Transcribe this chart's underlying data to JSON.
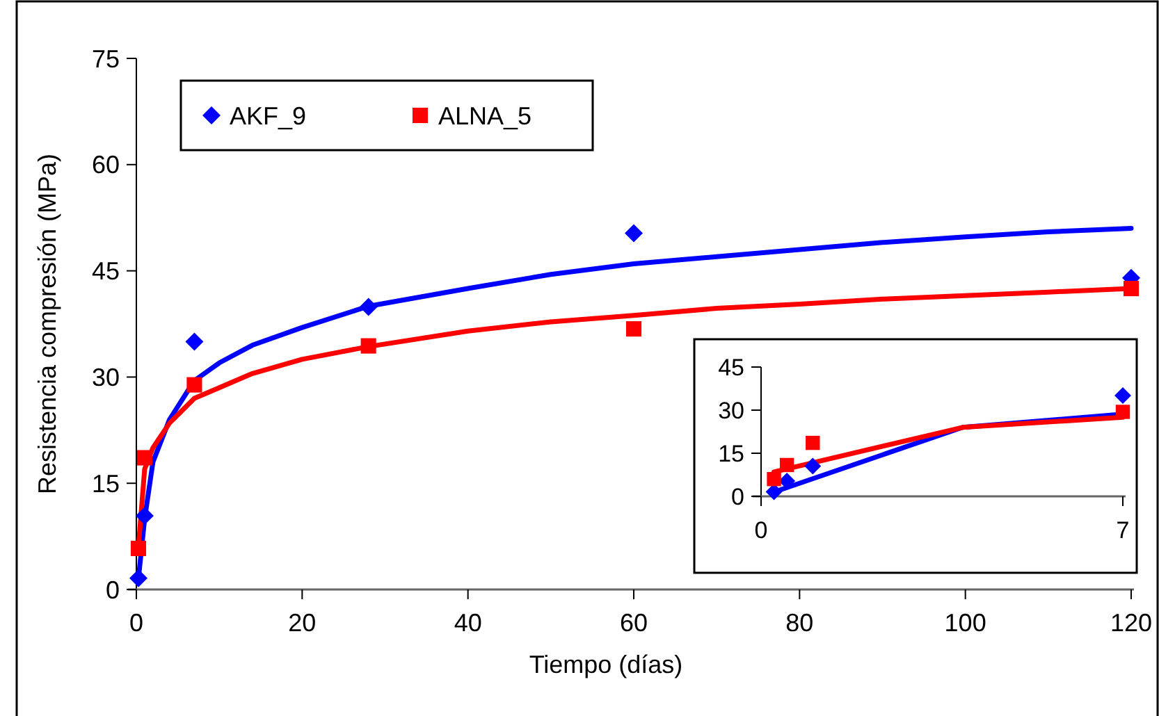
{
  "chart_data": [
    {
      "type": "scatter",
      "xlabel": "Tiempo (días)",
      "ylabel": "Resistencia compresión  (MPa)",
      "xlim": [
        0,
        120
      ],
      "xticks": [
        0,
        20,
        40,
        60,
        80,
        100,
        120
      ],
      "ylim": [
        0,
        75
      ],
      "yticks": [
        0,
        15,
        30,
        45,
        60,
        75
      ],
      "legend": "top left",
      "grid": false,
      "series": [
        {
          "name": "AKF_9",
          "color": "#0000ff",
          "marker": "diamond",
          "x": [
            0.25,
            1,
            7,
            28,
            60,
            120
          ],
          "values": [
            1.6,
            10.4,
            35,
            39.9,
            50.3,
            44
          ]
        },
        {
          "name": "ALNA_5",
          "color": "#ff0000",
          "marker": "square",
          "x": [
            0.25,
            1,
            7,
            28,
            60,
            120
          ],
          "values": [
            5.8,
            18.6,
            28.9,
            34.4,
            36.8,
            42.5
          ]
        },
        {
          "type": "line",
          "color": "#0000ff",
          "marker": "none",
          "x": [
            0.25,
            1,
            2,
            4,
            7,
            10,
            14,
            20,
            28,
            40,
            50,
            60,
            70,
            80,
            90,
            100,
            110,
            120
          ],
          "values": [
            1.5,
            10,
            18,
            24,
            29.5,
            32,
            34.5,
            37,
            40,
            42.5,
            44.5,
            46,
            47,
            48,
            49,
            49.8,
            50.5,
            51
          ]
        },
        {
          "type": "line",
          "color": "#ff0000",
          "marker": "none",
          "x": [
            0.25,
            1,
            2,
            4,
            7,
            10,
            14,
            20,
            28,
            40,
            50,
            60,
            70,
            80,
            90,
            100,
            110,
            120
          ],
          "values": [
            6,
            17,
            20,
            23.5,
            27,
            28.5,
            30.5,
            32.5,
            34.3,
            36.5,
            37.8,
            38.7,
            39.7,
            40.3,
            41,
            41.5,
            42,
            42.5
          ]
        }
      ]
    },
    {
      "type": "scatter",
      "xlim": [
        0,
        7
      ],
      "xticks": [
        0,
        7
      ],
      "ylim": [
        0,
        45
      ],
      "yticks": [
        0,
        15,
        30,
        45
      ],
      "grid": false,
      "series": [
        {
          "color": "#0000ff",
          "marker": "diamond",
          "x": [
            0.25,
            0.5,
            1,
            7
          ],
          "values": [
            1.6,
            5.3,
            10.5,
            35.1
          ]
        },
        {
          "color": "#ff0000",
          "marker": "square",
          "x": [
            0.25,
            0.5,
            1,
            7
          ],
          "values": [
            6,
            10.9,
            18.6,
            29.4
          ]
        },
        {
          "type": "line",
          "color": "#0000ff",
          "marker": "none",
          "x": [
            0.25,
            3.9,
            7
          ],
          "values": [
            1.5,
            24,
            28.6
          ]
        },
        {
          "type": "line",
          "color": "#ff0000",
          "marker": "none",
          "x": [
            0.25,
            3.9,
            7
          ],
          "values": [
            8.5,
            24,
            27.5
          ]
        }
      ]
    }
  ]
}
